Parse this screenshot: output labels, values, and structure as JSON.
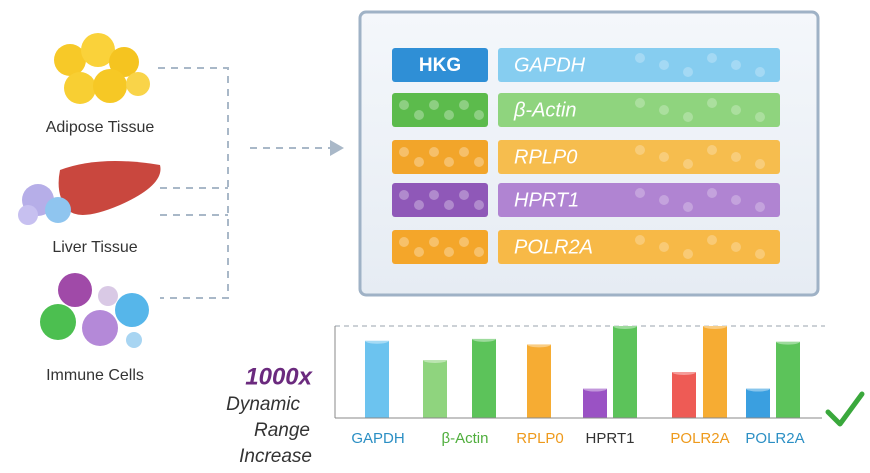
{
  "tissues": [
    "Adipose Tissue",
    "Liver Tissue",
    "Immune Cells"
  ],
  "panel": {
    "rows": [
      {
        "tag": "HKG",
        "gene": "GAPDH",
        "color": "#4aaee3",
        "light": "#86cdf0"
      },
      {
        "gene": "β-Actin",
        "color": "#5cbb4c",
        "light": "#8fd47e"
      },
      {
        "gene": "RPLP0",
        "color": "#f2a52a",
        "light": "#f6bd4e"
      },
      {
        "gene": "HPRT1",
        "color": "#8f58b8",
        "light": "#b084d2"
      },
      {
        "gene": "POLR2A",
        "color": "#f4a62a",
        "light": "#f7b947"
      }
    ]
  },
  "chart": {
    "headline": "1000x",
    "caption": [
      "Dynamic",
      "Range",
      "Increase"
    ],
    "categories": [
      {
        "label": "GAPDH",
        "label_color": "#2b8fc4",
        "bars": [
          {
            "value": 84,
            "color": "#6cc3ef"
          }
        ]
      },
      {
        "label": "β-Actin",
        "label_color": "#4fae3c",
        "bars": [
          {
            "value": 63,
            "color": "#8fd47e"
          },
          {
            "value": 86,
            "color": "#5cc35a"
          }
        ]
      },
      {
        "label": "RPLP0",
        "label_color": "#ee9a1c",
        "bars": [
          {
            "value": 80,
            "color": "#f6ac33"
          }
        ]
      },
      {
        "label": "HPRT1",
        "label_color": "#333333",
        "bars": [
          {
            "value": 32,
            "color": "#9a52c4"
          },
          {
            "value": 100,
            "color": "#5cc35a"
          }
        ]
      },
      {
        "label": "POLR2A",
        "label_color": "#ee9a1c",
        "bars": [
          {
            "value": 50,
            "color": "#ee5b55"
          },
          {
            "value": 100,
            "color": "#f6ac33"
          }
        ]
      },
      {
        "label": "POLR2A",
        "label_color": "#2b8fc4",
        "bars": [
          {
            "value": 32,
            "color": "#3a9fe0"
          },
          {
            "value": 83,
            "color": "#5cc35a"
          }
        ]
      }
    ]
  }
}
